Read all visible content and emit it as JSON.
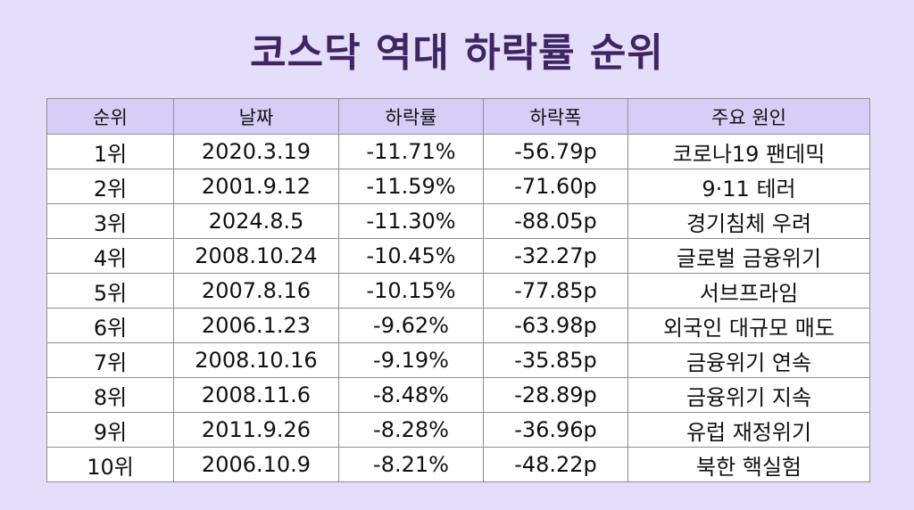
{
  "title": "코스닥 역대 하락률 순위",
  "colors": {
    "background": "#e4defa",
    "title": "#3f2563",
    "header_bg": "#d6cef6",
    "cell_bg": "#ffffff",
    "border": "#8e8e96"
  },
  "chart_data": {
    "type": "table",
    "title": "코스닥 역대 하락률 순위",
    "columns": [
      "순위",
      "날짜",
      "하락률",
      "하락폭",
      "주요 원인"
    ],
    "rows": [
      [
        "1위",
        "2020.3.19",
        "-11.71%",
        "-56.79p",
        "코로나19 팬데믹"
      ],
      [
        "2위",
        "2001.9.12",
        "-11.59%",
        "-71.60p",
        "9·11 테러"
      ],
      [
        "3위",
        "2024.8.5",
        "-11.30%",
        "-88.05p",
        "경기침체 우려"
      ],
      [
        "4위",
        "2008.10.24",
        "-10.45%",
        "-32.27p",
        "글로벌 금융위기"
      ],
      [
        "5위",
        "2007.8.16",
        "-10.15%",
        "-77.85p",
        "서브프라임"
      ],
      [
        "6위",
        "2006.1.23",
        "-9.62%",
        "-63.98p",
        "외국인 대규모 매도"
      ],
      [
        "7위",
        "2008.10.16",
        "-9.19%",
        "-35.85p",
        "금융위기 연속"
      ],
      [
        "8위",
        "2008.11.6",
        "-8.48%",
        "-28.89p",
        "금융위기 지속"
      ],
      [
        "9위",
        "2011.9.26",
        "-8.28%",
        "-36.96p",
        "유럽 재정위기"
      ],
      [
        "10위",
        "2006.10.9",
        "-8.21%",
        "-48.22p",
        "북한 핵실험"
      ]
    ]
  }
}
